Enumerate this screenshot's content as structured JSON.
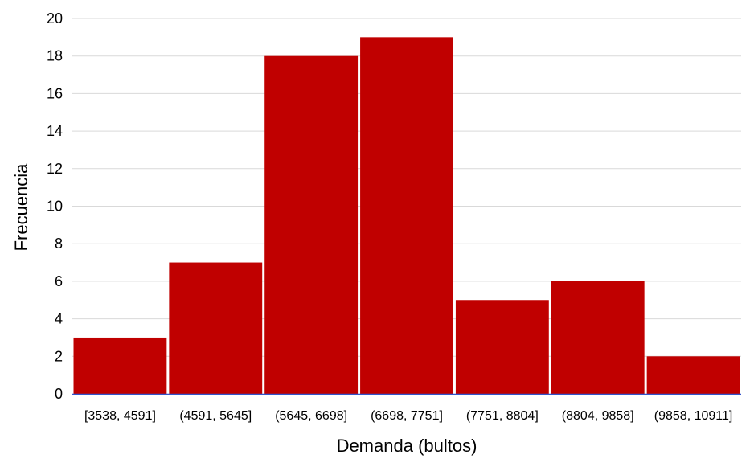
{
  "chart_data": {
    "type": "bar",
    "title": "",
    "xlabel": "Demanda (bultos)",
    "ylabel": "Frecuencia",
    "categories": [
      "[3538, 4591]",
      "(4591, 5645]",
      "(5645, 6698]",
      "(6698, 7751]",
      "(7751, 8804]",
      "(8804, 9858]",
      "(9858, 10911]"
    ],
    "values": [
      3,
      7,
      18,
      19,
      5,
      6,
      2
    ],
    "ylim": [
      0,
      20
    ],
    "yticks": [
      0,
      2,
      4,
      6,
      8,
      10,
      12,
      14,
      16,
      18,
      20
    ],
    "grid": true,
    "bar_color": "#c00000",
    "axis_color": "#3355cc"
  }
}
